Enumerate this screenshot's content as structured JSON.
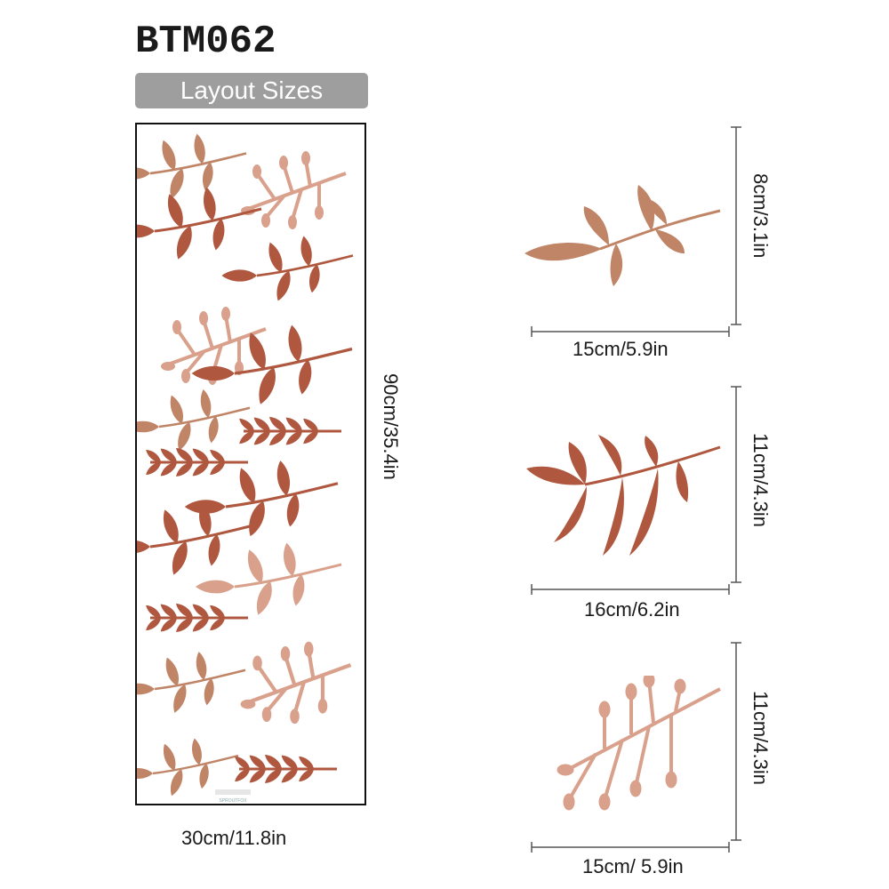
{
  "product_code": "BTM062",
  "badge_label": "Layout Sizes",
  "sheet": {
    "width_label": "30cm/11.8in",
    "height_label": "90cm/35.4in",
    "brand_mark": "SPROUTFOX"
  },
  "items": [
    {
      "name": "leaf-sprig-1",
      "width_label": "15cm/5.9in",
      "height_label": "8cm/3.1in",
      "color": "#c08466"
    },
    {
      "name": "leaf-sprig-2",
      "width_label": "16cm/6.2in",
      "height_label": "11cm/4.3in",
      "color": "#b0583f"
    },
    {
      "name": "berry-sprig",
      "width_label": "15cm/ 5.9in",
      "height_label": "11cm/4.3in",
      "color": "#d9a08c"
    }
  ],
  "colors": {
    "terracotta": "#b0583f",
    "clay": "#c08466",
    "blush": "#d9a08c",
    "badge_gray": "#9e9e9e"
  }
}
